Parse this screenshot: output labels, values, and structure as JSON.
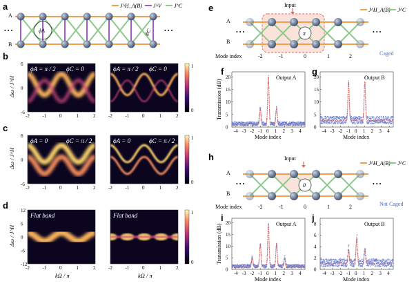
{
  "panels": {
    "a": "a",
    "b": "b",
    "c": "c",
    "d": "d",
    "e": "e",
    "f": "f",
    "g": "g",
    "h": "h",
    "i": "i",
    "j": "j"
  },
  "lattice": {
    "row_a": "A",
    "row_b": "B",
    "phi_a": "ϕA",
    "phi_c": "ϕC",
    "legend": [
      "J^H_A(B)",
      "J^V",
      "J^C"
    ],
    "legend_right": [
      "J^H_A(B)",
      "J^C"
    ]
  },
  "colors": {
    "horizontal": "#f0a04b",
    "vertical": "#a05bc4",
    "cross": "#8cc98a",
    "fit": "#e0675a",
    "data": "#6677cc"
  },
  "maps": {
    "b_left": [
      "ϕA = π / 2",
      "ϕC = 0"
    ],
    "b_right": [
      "ϕA = π / 2",
      "ϕC = 0"
    ],
    "c_left": [
      "ϕA = 0",
      "ϕC = π / 2"
    ],
    "c_right": [
      "ϕA = 0",
      "ϕC = π / 2"
    ],
    "d_left": "Flat band",
    "d_right": "Flat band",
    "ylabel": "Δω / J^H",
    "xlabel": "kΩ / π",
    "yticks_bc": [
      "6",
      "0",
      "-6"
    ],
    "yticks_d": [
      "12",
      "6",
      "0",
      "-6",
      "-12"
    ],
    "xticks": [
      "-2",
      "-1",
      "0",
      "1",
      "2"
    ],
    "cbar": [
      "1",
      "0"
    ]
  },
  "right_top": {
    "input": "Input",
    "center": "π",
    "mode_index": "Mode index",
    "indices": [
      "-2",
      "-1",
      "0",
      "1",
      "2"
    ],
    "status": "Caged"
  },
  "right_bottom": {
    "input": "Input",
    "center": "0",
    "mode_index": "Mode index",
    "indices": [
      "-2",
      "-1",
      "0",
      "1",
      "2"
    ],
    "status": "Not Caged"
  },
  "chart_data": [
    {
      "type": "scatter",
      "title": "Output A",
      "xlabel": "Mode index",
      "ylabel": "Transmission (dB)",
      "xlim": [
        -4.5,
        4.5
      ],
      "ylim": [
        0,
        22
      ],
      "xticks": [
        -4,
        -3,
        -2,
        -1,
        0,
        1,
        2,
        3,
        4
      ],
      "yticks": [
        0,
        5,
        10,
        15,
        20
      ],
      "peaks": [
        {
          "x": -1,
          "y": 7.5
        },
        {
          "x": 0,
          "y": 20
        },
        {
          "x": 1,
          "y": 7.5
        }
      ]
    },
    {
      "type": "scatter",
      "title": "Output B",
      "xlabel": "Mode index",
      "ylabel": "",
      "xlim": [
        -4.5,
        4.5
      ],
      "ylim": [
        0,
        22
      ],
      "xticks": [
        -4,
        -3,
        -2,
        -1,
        0,
        1,
        2,
        3,
        4
      ],
      "yticks": [
        0,
        5,
        10,
        15,
        20
      ],
      "peaks": [
        {
          "x": -1,
          "y": 18
        },
        {
          "x": 1,
          "y": 18
        }
      ]
    },
    {
      "type": "scatter",
      "title": "Output A",
      "xlabel": "Mode index",
      "ylabel": "Transmission (dB)",
      "xlim": [
        -4.5,
        4.5
      ],
      "ylim": [
        0,
        22
      ],
      "xticks": [
        -4,
        -3,
        -2,
        -1,
        0,
        1,
        2,
        3,
        4
      ],
      "yticks": [
        0,
        5,
        10,
        15,
        20
      ],
      "peaks": [
        {
          "x": -2,
          "y": 5
        },
        {
          "x": -1,
          "y": 11
        },
        {
          "x": 0,
          "y": 19.5
        },
        {
          "x": 1,
          "y": 11
        },
        {
          "x": 2,
          "y": 5
        }
      ]
    },
    {
      "type": "scatter",
      "title": "Output B",
      "xlabel": "Mode index",
      "ylabel": "",
      "xlim": [
        -4.5,
        4.5
      ],
      "ylim": [
        0,
        9
      ],
      "xticks": [
        -4,
        -3,
        -2,
        -1,
        0,
        1,
        2,
        3,
        4
      ],
      "yticks": [
        0,
        2,
        4,
        6,
        8
      ],
      "peaks": [
        {
          "x": -2,
          "y": 1.2
        },
        {
          "x": -1,
          "y": 3.5
        },
        {
          "x": 0,
          "y": 5.5
        },
        {
          "x": 1,
          "y": 3.5
        },
        {
          "x": 2,
          "y": 1.2
        }
      ]
    }
  ]
}
